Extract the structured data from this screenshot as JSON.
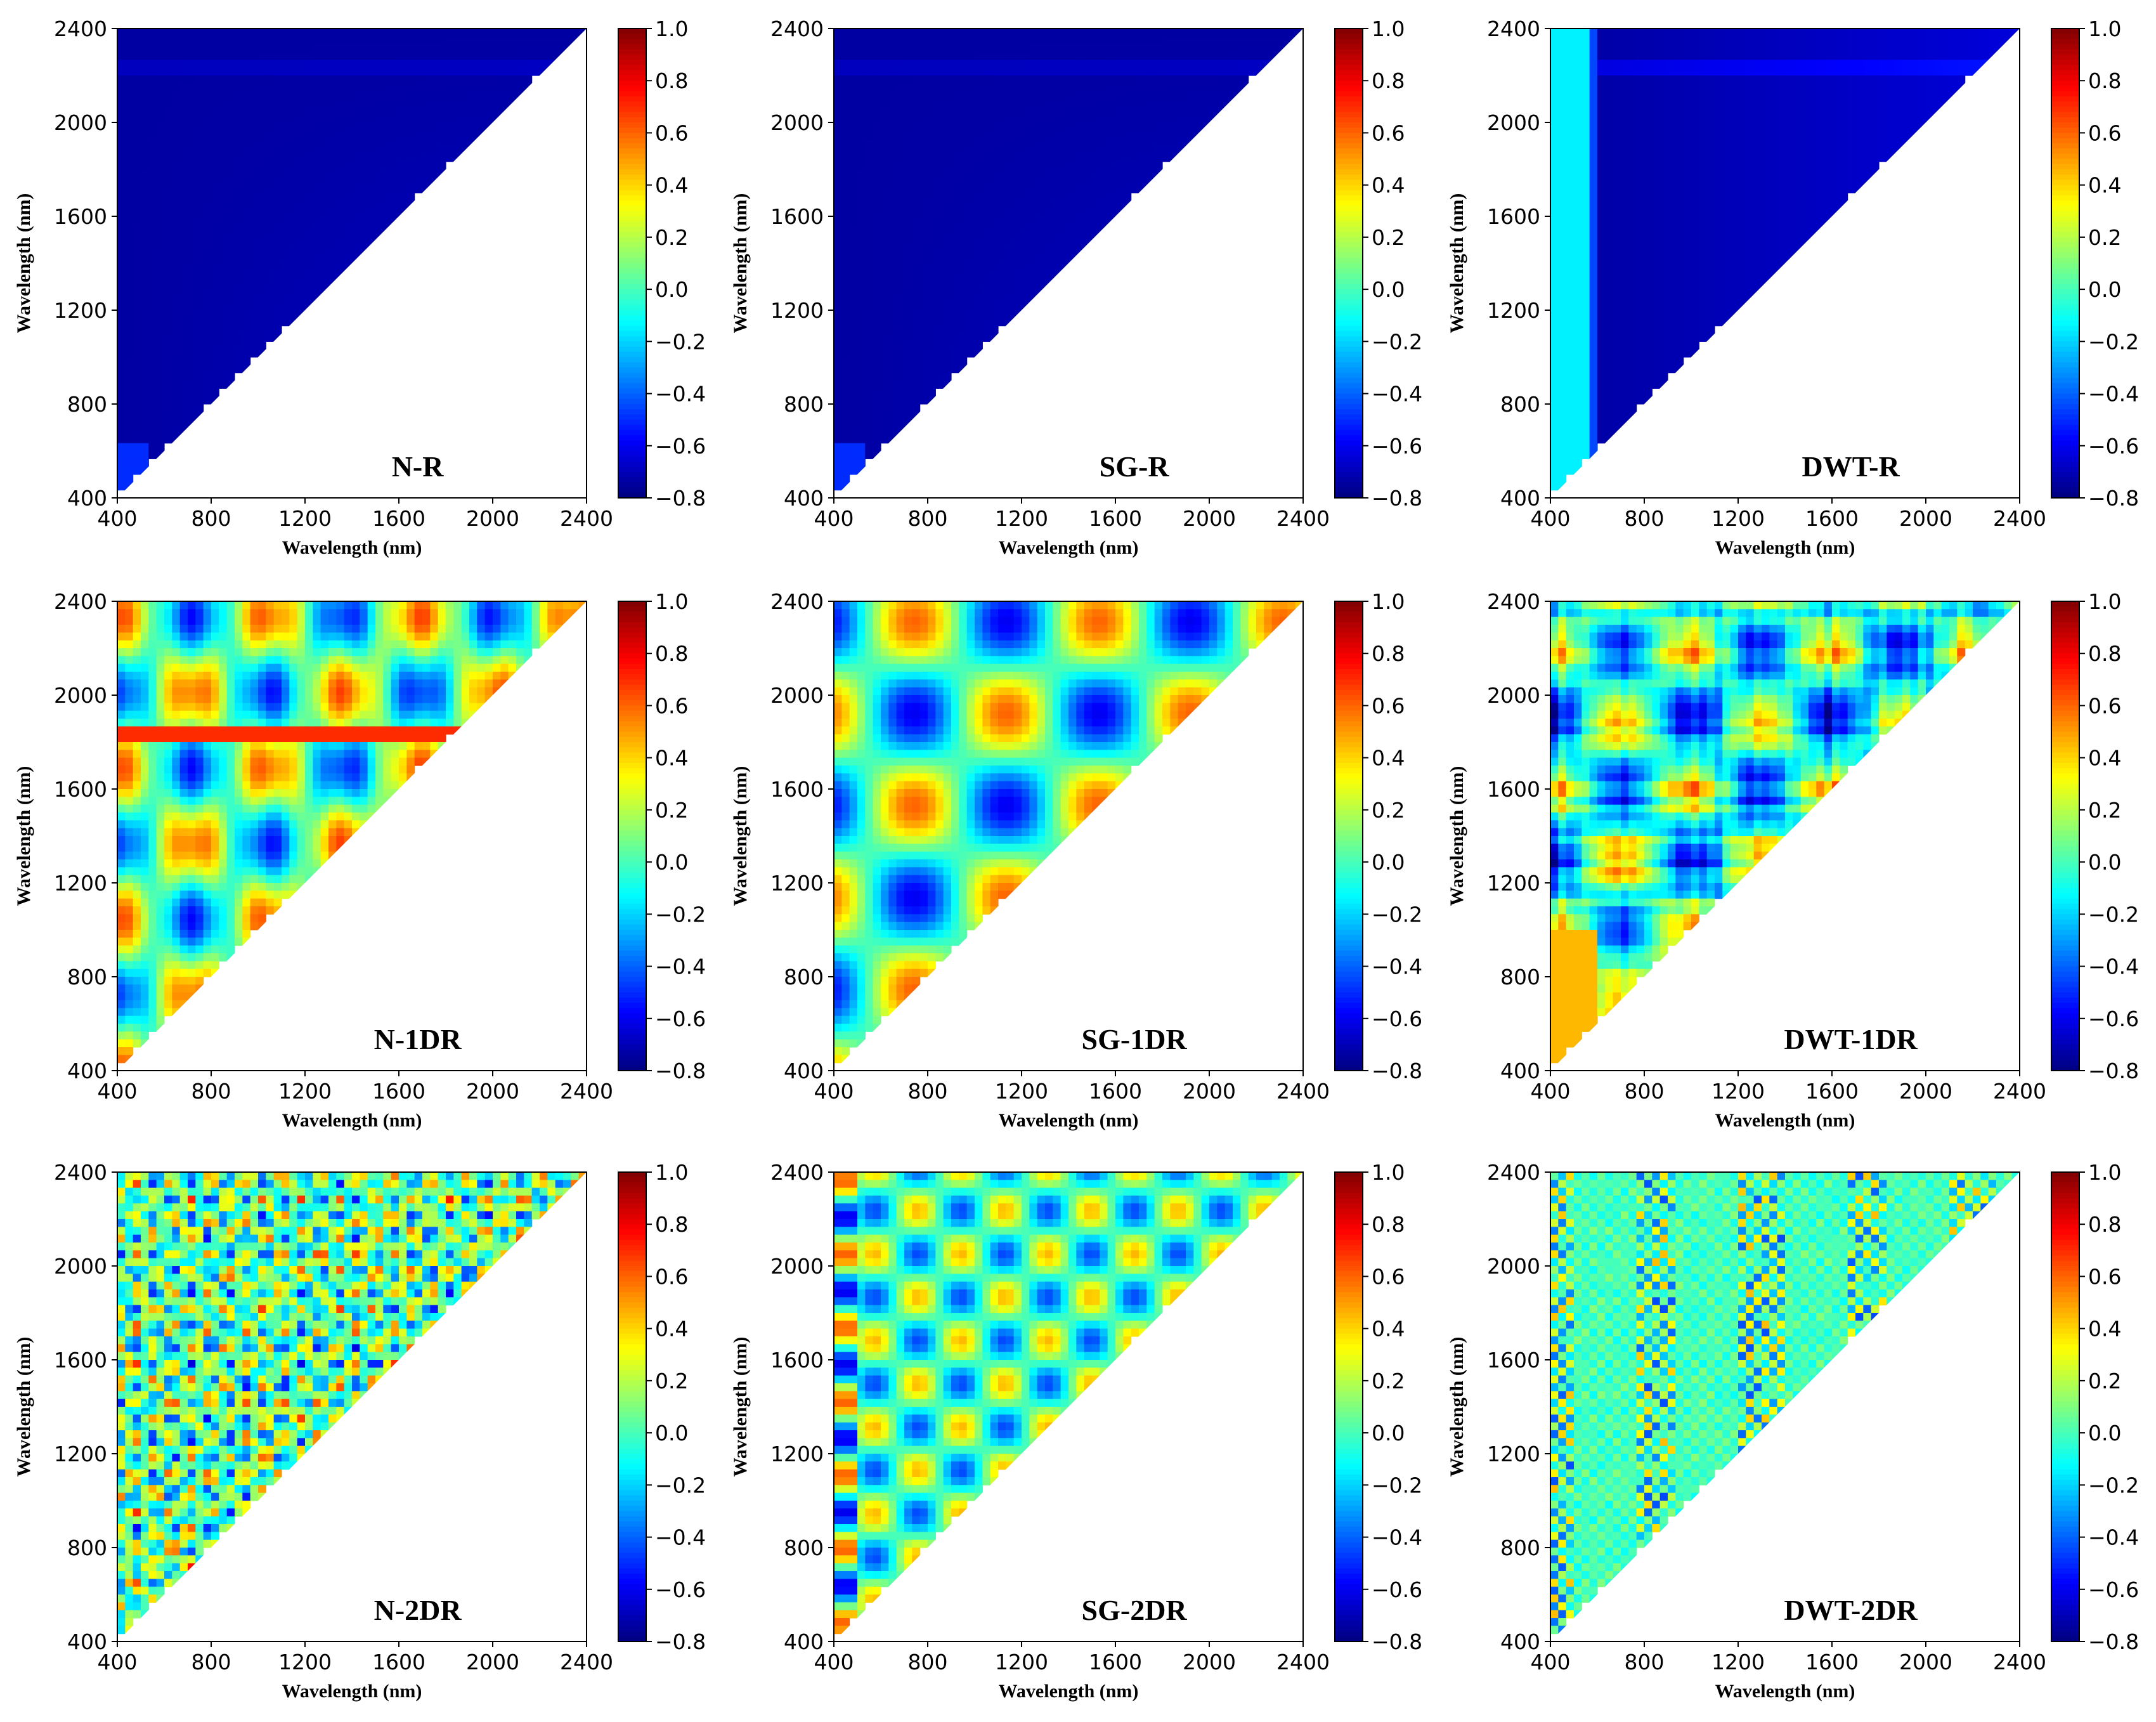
{
  "chart_data": [
    {
      "type": "heatmap",
      "title": "N-R",
      "pattern": "reflectance",
      "xlabel": "Wavelength (nm)",
      "ylabel": "Wavelength (nm)",
      "xticks": [
        "400",
        "800",
        "1200",
        "1600",
        "2000",
        "2400"
      ],
      "yticks": [
        "400",
        "800",
        "1200",
        "1600",
        "2000",
        "2400"
      ],
      "xlim": [
        400,
        2400
      ],
      "ylim": [
        400,
        2400
      ],
      "colorbar": {
        "ticks": [
          "1.0",
          "0.8",
          "0.6",
          "0.4",
          "0.2",
          "0.0",
          "−0.2",
          "−0.4",
          "−0.6",
          "−0.8"
        ],
        "range": [
          -0.8,
          1.0
        ],
        "colormap": "jet"
      }
    },
    {
      "type": "heatmap",
      "title": "SG-R",
      "pattern": "reflectance",
      "xlabel": "Wavelength (nm)",
      "ylabel": "Wavelength (nm)",
      "xticks": [
        "400",
        "800",
        "1200",
        "1600",
        "2000",
        "2400"
      ],
      "yticks": [
        "400",
        "800",
        "1200",
        "1600",
        "2000",
        "2400"
      ],
      "xlim": [
        400,
        2400
      ],
      "ylim": [
        400,
        2400
      ],
      "colorbar": {
        "ticks": [
          "1.0",
          "0.8",
          "0.6",
          "0.4",
          "0.2",
          "0.0",
          "−0.2",
          "−0.4",
          "−0.6",
          "−0.8"
        ],
        "range": [
          -0.8,
          1.0
        ],
        "colormap": "jet"
      }
    },
    {
      "type": "heatmap",
      "title": "DWT-R",
      "pattern": "reflectance-dwt",
      "xlabel": "Wavelength (nm)",
      "ylabel": "Wavelength (nm)",
      "xticks": [
        "400",
        "800",
        "1200",
        "1600",
        "2000",
        "2400"
      ],
      "yticks": [
        "400",
        "800",
        "1200",
        "1600",
        "2000",
        "2400"
      ],
      "xlim": [
        400,
        2400
      ],
      "ylim": [
        400,
        2400
      ],
      "colorbar": {
        "ticks": [
          "1.0",
          "0.8",
          "0.6",
          "0.4",
          "0.2",
          "0.0",
          "−0.2",
          "−0.4",
          "−0.6",
          "−0.8"
        ],
        "range": [
          -0.8,
          1.0
        ],
        "colormap": "jet"
      }
    },
    {
      "type": "heatmap",
      "title": "N-1DR",
      "pattern": "first-derivative",
      "xlabel": "Wavelength (nm)",
      "ylabel": "Wavelength (nm)",
      "xticks": [
        "400",
        "800",
        "1200",
        "1600",
        "2000",
        "2400"
      ],
      "yticks": [
        "400",
        "800",
        "1200",
        "1600",
        "2000",
        "2400"
      ],
      "xlim": [
        400,
        2400
      ],
      "ylim": [
        400,
        2400
      ],
      "colorbar": {
        "ticks": [
          "1.0",
          "0.8",
          "0.6",
          "0.4",
          "0.2",
          "0.0",
          "−0.2",
          "−0.4",
          "−0.6",
          "−0.8"
        ],
        "range": [
          -0.8,
          1.0
        ],
        "colormap": "jet"
      }
    },
    {
      "type": "heatmap",
      "title": "SG-1DR",
      "pattern": "first-derivative-smooth",
      "xlabel": "Wavelength (nm)",
      "ylabel": "Wavelength (nm)",
      "xticks": [
        "400",
        "800",
        "1200",
        "1600",
        "2000",
        "2400"
      ],
      "yticks": [
        "400",
        "800",
        "1200",
        "1600",
        "2000",
        "2400"
      ],
      "xlim": [
        400,
        2400
      ],
      "ylim": [
        400,
        2400
      ],
      "colorbar": {
        "ticks": [
          "1.0",
          "0.8",
          "0.6",
          "0.4",
          "0.2",
          "0.0",
          "−0.2",
          "−0.4",
          "−0.6",
          "−0.8"
        ],
        "range": [
          -0.8,
          1.0
        ],
        "colormap": "jet"
      }
    },
    {
      "type": "heatmap",
      "title": "DWT-1DR",
      "pattern": "first-derivative-dwt",
      "xlabel": "Wavelength (nm)",
      "ylabel": "Wavelength (nm)",
      "xticks": [
        "400",
        "800",
        "1200",
        "1600",
        "2000",
        "2400"
      ],
      "yticks": [
        "400",
        "800",
        "1200",
        "1600",
        "2000",
        "2400"
      ],
      "xlim": [
        400,
        2400
      ],
      "ylim": [
        400,
        2400
      ],
      "colorbar": {
        "ticks": [
          "1.0",
          "0.8",
          "0.6",
          "0.4",
          "0.2",
          "0.0",
          "−0.2",
          "−0.4",
          "−0.6",
          "−0.8"
        ],
        "range": [
          -0.8,
          1.0
        ],
        "colormap": "jet"
      }
    },
    {
      "type": "heatmap",
      "title": "N-2DR",
      "pattern": "second-derivative",
      "xlabel": "Wavelength (nm)",
      "ylabel": "Wavelength (nm)",
      "xticks": [
        "400",
        "800",
        "1200",
        "1600",
        "2000",
        "2400"
      ],
      "yticks": [
        "400",
        "800",
        "1200",
        "1600",
        "2000",
        "2400"
      ],
      "xlim": [
        400,
        2400
      ],
      "ylim": [
        400,
        2400
      ],
      "colorbar": {
        "ticks": [
          "1.0",
          "0.8",
          "0.6",
          "0.4",
          "0.2",
          "0.0",
          "−0.2",
          "−0.4",
          "−0.6",
          "−0.8"
        ],
        "range": [
          -0.8,
          1.0
        ],
        "colormap": "jet"
      }
    },
    {
      "type": "heatmap",
      "title": "SG-2DR",
      "pattern": "second-derivative-smooth",
      "xlabel": "Wavelength (nm)",
      "ylabel": "Wavelength (nm)",
      "xticks": [
        "400",
        "800",
        "1200",
        "1600",
        "2000",
        "2400"
      ],
      "yticks": [
        "400",
        "800",
        "1200",
        "1600",
        "2000",
        "2400"
      ],
      "xlim": [
        400,
        2400
      ],
      "ylim": [
        400,
        2400
      ],
      "colorbar": {
        "ticks": [
          "1.0",
          "0.8",
          "0.6",
          "0.4",
          "0.2",
          "0.0",
          "−0.2",
          "−0.4",
          "−0.6",
          "−0.8"
        ],
        "range": [
          -0.8,
          1.0
        ],
        "colormap": "jet"
      }
    },
    {
      "type": "heatmap",
      "title": "DWT-2DR",
      "pattern": "second-derivative-dwt",
      "xlabel": "Wavelength (nm)",
      "ylabel": "Wavelength (nm)",
      "xticks": [
        "400",
        "800",
        "1200",
        "1600",
        "2000",
        "2400"
      ],
      "yticks": [
        "400",
        "800",
        "1200",
        "1600",
        "2000",
        "2400"
      ],
      "xlim": [
        400,
        2400
      ],
      "ylim": [
        400,
        2400
      ],
      "colorbar": {
        "ticks": [
          "1.0",
          "0.8",
          "0.6",
          "0.4",
          "0.2",
          "0.0",
          "−0.2",
          "−0.4",
          "−0.6",
          "−0.8"
        ],
        "range": [
          -0.8,
          1.0
        ],
        "colormap": "jet"
      }
    }
  ]
}
